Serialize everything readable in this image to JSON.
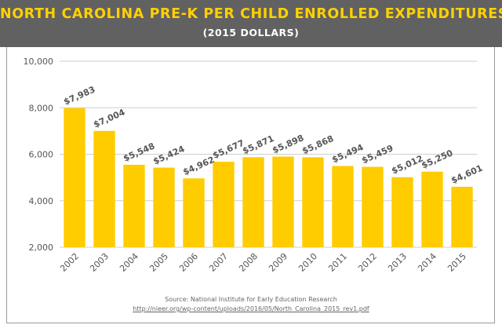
{
  "header": {
    "title": "NORTH CAROLINA PRE-K PER CHILD ENROLLED EXPENDITURES",
    "subtitle": "(2015 DOLLARS)"
  },
  "colors": {
    "bar": "#ffcc00",
    "header_bg": "#616161",
    "title": "#ffd100",
    "grid": "#cfcfcf",
    "text": "#555555"
  },
  "source": {
    "line": "Source: National Institute for Early Education Research",
    "url": "http://nieer.org/wp-content/uploads/2016/05/North_Carolina_2015_rev1.pdf"
  },
  "chart_data": {
    "type": "bar",
    "categories": [
      "2002",
      "2003",
      "2004",
      "2005",
      "2006",
      "2007",
      "2008",
      "2009",
      "2010",
      "2011",
      "2012",
      "2013",
      "2014",
      "2015"
    ],
    "values": [
      7983,
      7004,
      5548,
      5424,
      4962,
      5677,
      5871,
      5898,
      5868,
      5494,
      5459,
      5012,
      5250,
      4601
    ],
    "data_labels": [
      "$7,983",
      "$7,004",
      "$5,548",
      "$5,424",
      "$4,962",
      "$5,677",
      "$5,871",
      "$5,898",
      "$5,868",
      "$5,494",
      "$5,459",
      "$5,012",
      "$5,250",
      "$4,601"
    ],
    "y_ticks": [
      2000,
      4000,
      6000,
      8000,
      10000
    ],
    "y_tick_labels": [
      "2,000",
      "4,000",
      "6,000",
      "8,000",
      "10,000"
    ],
    "ylim": [
      2000,
      10000
    ],
    "grid": true,
    "title": "NORTH CAROLINA PRE-K PER CHILD ENROLLED EXPENDITURES",
    "subtitle": "(2015 DOLLARS)",
    "xlabel": "",
    "ylabel": ""
  }
}
